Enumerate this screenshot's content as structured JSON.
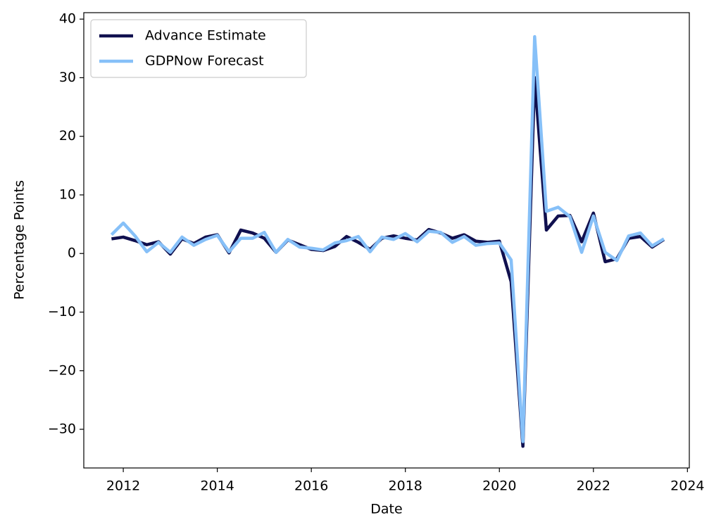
{
  "chart_data": {
    "type": "line",
    "xlabel": "Date",
    "ylabel": "Percentage Points",
    "x": [
      2011.75,
      2012,
      2012.25,
      2012.5,
      2012.75,
      2013,
      2013.25,
      2013.5,
      2013.75,
      2014,
      2014.25,
      2014.5,
      2014.75,
      2015,
      2015.25,
      2015.5,
      2015.75,
      2016,
      2016.25,
      2016.5,
      2016.75,
      2017,
      2017.25,
      2017.5,
      2017.75,
      2018,
      2018.25,
      2018.5,
      2018.75,
      2019,
      2019.25,
      2019.5,
      2019.75,
      2020,
      2020.25,
      2020.5,
      2020.75,
      2021,
      2021.25,
      2021.5,
      2021.75,
      2022,
      2022.25,
      2022.5,
      2022.75,
      2023,
      2023.25,
      2023.5
    ],
    "series": [
      {
        "name": "Advance Estimate",
        "color": "#10104f",
        "values": [
          2.5,
          2.8,
          2.2,
          1.5,
          2.0,
          -0.1,
          2.5,
          1.7,
          2.8,
          3.2,
          0.1,
          4.0,
          3.5,
          2.6,
          0.2,
          2.3,
          1.5,
          0.7,
          0.5,
          1.2,
          2.9,
          1.9,
          0.7,
          2.6,
          3.0,
          2.6,
          2.3,
          4.1,
          3.5,
          2.6,
          3.2,
          2.1,
          1.9,
          2.1,
          -4.8,
          -32.9,
          30.0,
          4.0,
          6.4,
          6.5,
          2.0,
          6.9,
          -1.4,
          -0.9,
          2.6,
          2.9,
          1.1,
          2.4
        ]
      },
      {
        "name": "GDPNow Forecast",
        "color": "#86c0f8",
        "values": [
          3.2,
          5.2,
          3.0,
          0.3,
          1.9,
          0.2,
          2.8,
          1.4,
          2.4,
          3.1,
          0.3,
          2.6,
          2.6,
          3.6,
          0.2,
          2.4,
          1.1,
          0.9,
          0.6,
          1.8,
          2.2,
          2.9,
          0.3,
          2.8,
          2.4,
          3.4,
          2.0,
          3.8,
          3.6,
          1.9,
          2.9,
          1.4,
          1.7,
          1.8,
          -1.1,
          -32.1,
          37.0,
          7.2,
          7.9,
          6.3,
          0.2,
          6.4,
          0.2,
          -1.2,
          3.0,
          3.5,
          1.3,
          2.5
        ]
      }
    ],
    "xlim": [
      2011.16,
      2024.04
    ],
    "ylim": [
      -36.6,
      41.1
    ],
    "xticks": [
      2012,
      2014,
      2016,
      2018,
      2020,
      2022,
      2024
    ],
    "yticks": [
      {
        "value": -30,
        "label": "−30"
      },
      {
        "value": -20,
        "label": "−20"
      },
      {
        "value": -10,
        "label": "−10"
      },
      0,
      10,
      20,
      30,
      40
    ],
    "legend": "upper left",
    "grid": false
  }
}
